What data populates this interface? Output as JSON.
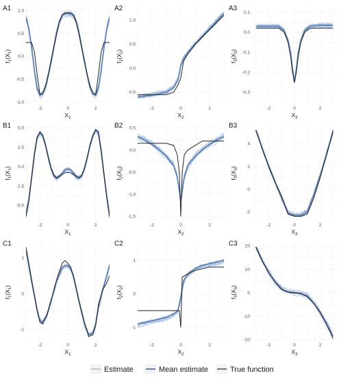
{
  "legend": {
    "items": [
      {
        "label": "Estimate",
        "color": "#a6bddb"
      },
      {
        "label": "Mean estimate",
        "color": "#5b84c4"
      },
      {
        "label": "True function",
        "color": "#222222"
      }
    ]
  },
  "chart_data": [
    {
      "id": "A1",
      "type": "line",
      "panel_label": "A1",
      "xlabel": "X1",
      "ylabel": "f1(X1)",
      "xlim": [
        -3,
        3
      ],
      "ylim": [
        -1.05,
        1.05
      ],
      "xticks": [
        -2,
        0,
        2
      ],
      "yticks": [
        -1.0,
        -0.5,
        0.0,
        0.5,
        1.0
      ],
      "ytick_labels": [
        "-1.0",
        "-0.5",
        "0.0",
        "0.5",
        "1.0"
      ],
      "series": [
        {
          "name": "True function",
          "x": [
            -3,
            -2.8,
            -2.6,
            -2.4,
            -2.2,
            -2.0,
            -1.8,
            -1.6,
            -1.4,
            -1.2,
            -1.0,
            -0.8,
            -0.6,
            -0.4,
            -0.2,
            0,
            0.2,
            0.4,
            0.6,
            0.8,
            1.0,
            1.2,
            1.4,
            1.6,
            1.8,
            2.0,
            2.2,
            2.4,
            2.6,
            2.8,
            3
          ],
          "y": [
            0.3,
            0.3,
            0.3,
            0.1,
            -0.4,
            -0.84,
            -0.8,
            -0.65,
            -0.4,
            -0.1,
            0.2,
            0.5,
            0.75,
            0.9,
            0.95,
            0.95,
            0.95,
            0.9,
            0.75,
            0.5,
            0.2,
            -0.1,
            -0.4,
            -0.65,
            -0.8,
            -0.84,
            -0.4,
            0.1,
            0.3,
            0.3,
            0.3
          ]
        },
        {
          "name": "Mean estimate",
          "x": [
            -3,
            -2.8,
            -2.6,
            -2.4,
            -2.2,
            -2.0,
            -1.8,
            -1.6,
            -1.4,
            -1.2,
            -1.0,
            -0.8,
            -0.6,
            -0.4,
            -0.2,
            0,
            0.2,
            0.4,
            0.6,
            0.8,
            1.0,
            1.2,
            1.4,
            1.6,
            1.8,
            2.0,
            2.2,
            2.4,
            2.6,
            2.8,
            3
          ],
          "y": [
            0.85,
            0.6,
            0.2,
            -0.3,
            -0.7,
            -0.85,
            -0.82,
            -0.68,
            -0.42,
            -0.12,
            0.2,
            0.52,
            0.76,
            0.9,
            0.93,
            0.93,
            0.93,
            0.9,
            0.76,
            0.52,
            0.2,
            -0.12,
            -0.42,
            -0.68,
            -0.82,
            -0.85,
            -0.7,
            -0.3,
            0.2,
            0.6,
            0.85
          ]
        }
      ]
    },
    {
      "id": "A2",
      "type": "line",
      "panel_label": "A2",
      "xlabel": "X2",
      "ylabel": "f2(X2)",
      "xlim": [
        -3,
        3
      ],
      "ylim": [
        -0.75,
        1.25
      ],
      "xticks": [
        -2,
        0,
        2
      ],
      "yticks": [
        -0.5,
        0.0,
        0.5,
        1.0
      ],
      "ytick_labels": [
        "-0.5",
        "0.0",
        "0.5",
        "1.0"
      ],
      "series": [
        {
          "name": "True function",
          "x": [
            -3,
            -2,
            -1,
            -0.5,
            -0.2,
            0,
            0.2,
            0.5,
            1,
            1.5,
            2,
            2.5,
            3
          ],
          "y": [
            -0.55,
            -0.55,
            -0.55,
            -0.5,
            -0.35,
            -0.2,
            0.15,
            0.3,
            0.5,
            0.65,
            0.8,
            0.95,
            1.1
          ]
        },
        {
          "name": "Mean estimate",
          "x": [
            -3,
            -2,
            -1,
            -0.5,
            -0.2,
            0,
            0.2,
            0.5,
            1,
            1.5,
            2,
            2.5,
            3
          ],
          "y": [
            -0.6,
            -0.56,
            -0.5,
            -0.4,
            -0.25,
            0.05,
            0.2,
            0.32,
            0.5,
            0.66,
            0.82,
            0.98,
            1.14
          ]
        }
      ]
    },
    {
      "id": "A3",
      "type": "line",
      "panel_label": "A3",
      "xlabel": "X3",
      "ylabel": "f3(X3)",
      "xlim": [
        -3.3,
        3.3
      ],
      "ylim": [
        -0.36,
        0.12
      ],
      "xticks": [
        -2,
        0,
        2
      ],
      "yticks": [
        -0.3,
        -0.2,
        -0.1,
        0.0,
        0.1
      ],
      "ytick_labels": [
        "-0.3",
        "-0.2",
        "-0.1",
        "0.0",
        "0.1"
      ],
      "series": [
        {
          "name": "True function",
          "x": [
            -3,
            -2,
            -1.2,
            -0.8,
            -0.5,
            -0.3,
            -0.15,
            0,
            0.15,
            0.3,
            0.5,
            0.8,
            1.2,
            2,
            3
          ],
          "y": [
            0.02,
            0.02,
            0.02,
            0.0,
            -0.05,
            -0.12,
            -0.2,
            -0.25,
            -0.2,
            -0.12,
            -0.05,
            0.0,
            0.02,
            0.02,
            0.02
          ]
        },
        {
          "name": "Mean estimate",
          "x": [
            -3,
            -2,
            -1.2,
            -0.8,
            -0.5,
            -0.3,
            -0.15,
            0,
            0.15,
            0.3,
            0.5,
            0.8,
            1.2,
            2,
            3
          ],
          "y": [
            0.03,
            0.03,
            0.03,
            0.01,
            -0.04,
            -0.1,
            -0.18,
            -0.25,
            -0.18,
            -0.1,
            -0.04,
            0.01,
            0.03,
            0.035,
            0.035
          ]
        }
      ]
    },
    {
      "id": "B1",
      "type": "line",
      "panel_label": "B1",
      "xlabel": "X1",
      "ylabel": "f1(X1)",
      "xlim": [
        -3,
        3
      ],
      "ylim": [
        -7,
        5.3
      ],
      "xticks": [
        -2,
        0,
        2
      ],
      "yticks": [
        -5.0,
        -2.5,
        0.0,
        2.5,
        5.0
      ],
      "ytick_labels": [
        "-5.0",
        "-2.5",
        "0.0",
        "2.5",
        "5.0"
      ],
      "series": [
        {
          "name": "True function",
          "x": [
            -3,
            -2.8,
            -2.6,
            -2.4,
            -2.2,
            -2.0,
            -1.8,
            -1.6,
            -1.4,
            -1.2,
            -1.0,
            -0.8,
            -0.6,
            -0.4,
            -0.2,
            0,
            0.2,
            0.4,
            0.6,
            0.8,
            1.0,
            1.2,
            1.4,
            1.6,
            1.8,
            2.0,
            2.2,
            2.4,
            2.6,
            2.8,
            3
          ],
          "y": [
            -6.5,
            -4.5,
            -1.5,
            1.5,
            3.8,
            4.5,
            4.0,
            2.8,
            1.2,
            -0.2,
            -1.2,
            -1.5,
            -1.3,
            -1.0,
            -0.8,
            -0.75,
            -0.8,
            -1.0,
            -1.3,
            -1.5,
            -1.2,
            -0.2,
            1.2,
            2.8,
            4.0,
            4.8,
            4.5,
            2.0,
            -1.0,
            -4.0,
            -6.5
          ]
        },
        {
          "name": "Mean estimate",
          "x": [
            -3,
            -2.8,
            -2.6,
            -2.4,
            -2.2,
            -2.0,
            -1.8,
            -1.6,
            -1.4,
            -1.2,
            -1.0,
            -0.8,
            -0.6,
            -0.4,
            -0.2,
            0,
            0.2,
            0.4,
            0.6,
            0.8,
            1.0,
            1.2,
            1.4,
            1.6,
            1.8,
            2.0,
            2.2,
            2.4,
            2.6,
            2.8,
            3
          ],
          "y": [
            -6.0,
            -4.2,
            -1.4,
            1.6,
            3.8,
            4.4,
            4.0,
            2.8,
            1.2,
            -0.2,
            -1.1,
            -1.4,
            -1.2,
            -0.8,
            -0.4,
            -0.3,
            -0.4,
            -0.8,
            -1.2,
            -1.4,
            -1.1,
            -0.2,
            1.2,
            2.8,
            4.0,
            4.7,
            4.4,
            2.0,
            -1.0,
            -3.8,
            -6.3
          ]
        }
      ]
    },
    {
      "id": "B2",
      "type": "line",
      "panel_label": "B2",
      "xlabel": "X2",
      "ylabel": "f2(X2)",
      "xlim": [
        -3,
        3
      ],
      "ylim": [
        -1.6,
        0.55
      ],
      "xticks": [
        -2,
        0,
        2
      ],
      "yticks": [
        -1.5,
        -1.0,
        -0.5,
        0.0,
        0.5
      ],
      "ytick_labels": [
        "-1.5",
        "-1.0",
        "-0.5",
        "0.0",
        "0.5"
      ],
      "series": [
        {
          "name": "True function",
          "x": [
            -3,
            -2,
            -1,
            -0.5,
            -0.25,
            -0.1,
            0,
            0.1,
            0.25,
            0.5,
            1,
            1.5,
            2,
            3
          ],
          "y": [
            0.15,
            0.15,
            0.15,
            0.1,
            -0.1,
            -0.5,
            -1.5,
            -0.5,
            -0.1,
            0.0,
            0.1,
            0.2,
            0.2,
            0.2
          ]
        },
        {
          "name": "Mean estimate",
          "x": [
            -3,
            -2.5,
            -2,
            -1.5,
            -1,
            -0.5,
            -0.25,
            0,
            0.25,
            0.5,
            1,
            1.5,
            2,
            2.5,
            3
          ],
          "y": [
            0.3,
            0.22,
            0.12,
            0.0,
            -0.15,
            -0.35,
            -0.6,
            -1.15,
            -0.6,
            -0.35,
            -0.15,
            0.0,
            0.12,
            0.22,
            0.3
          ]
        }
      ]
    },
    {
      "id": "B3",
      "type": "line",
      "panel_label": "B3",
      "xlabel": "X3",
      "ylabel": "f3(X3)",
      "xlim": [
        -3.3,
        3.3
      ],
      "ylim": [
        -2.8,
        5.6
      ],
      "xticks": [
        -2,
        0,
        2
      ],
      "yticks": [
        -2,
        0,
        2,
        4
      ],
      "ytick_labels": [
        "-2",
        "0",
        "2",
        "4"
      ],
      "series": [
        {
          "name": "True function",
          "x": [
            -3,
            -2.5,
            -2,
            -1.5,
            -1,
            -0.5,
            0,
            0.5,
            1,
            1.5,
            2,
            2.5,
            3
          ],
          "y": [
            5.2,
            3.5,
            2.0,
            0.6,
            -0.6,
            -2.2,
            -2.4,
            -2.4,
            -2.2,
            -0.8,
            1.0,
            3.0,
            5.2
          ]
        },
        {
          "name": "Mean estimate",
          "x": [
            -3,
            -2.5,
            -2,
            -1.5,
            -1,
            -0.5,
            0,
            0.5,
            1,
            1.5,
            2,
            2.5,
            3
          ],
          "y": [
            5.2,
            3.6,
            2.0,
            0.6,
            -0.8,
            -2.1,
            -2.3,
            -2.3,
            -2.0,
            -0.5,
            1.2,
            3.1,
            5.0
          ]
        }
      ]
    },
    {
      "id": "C1",
      "type": "line",
      "panel_label": "C1",
      "xlabel": "X1",
      "ylabel": "f1(X1)",
      "xlim": [
        -3,
        3
      ],
      "ylim": [
        -1.32,
        1.4
      ],
      "xticks": [
        -2,
        0,
        2
      ],
      "yticks": [
        -1,
        0,
        1
      ],
      "ytick_labels": [
        "-1",
        "0",
        "1"
      ],
      "series": [
        {
          "name": "True function",
          "x": [
            -3,
            -2.6,
            -2.2,
            -2.0,
            -1.8,
            -1.5,
            -1.2,
            -0.8,
            -0.4,
            -0.2,
            0,
            0.2,
            0.4,
            0.8,
            1.2,
            1.5,
            1.8,
            2.0,
            2.2,
            2.5,
            2.8,
            3
          ],
          "y": [
            1.3,
            0.4,
            -0.5,
            -0.8,
            -0.85,
            -0.6,
            -0.2,
            0.4,
            0.85,
            0.92,
            0.85,
            0.75,
            0.5,
            -0.2,
            -0.8,
            -1.2,
            -1.15,
            -0.9,
            -0.3,
            0.1,
            0.3,
            0.5
          ]
        },
        {
          "name": "Mean estimate",
          "x": [
            -3,
            -2.6,
            -2.2,
            -2.0,
            -1.8,
            -1.5,
            -1.2,
            -0.8,
            -0.4,
            -0.2,
            0,
            0.2,
            0.4,
            0.8,
            1.2,
            1.5,
            1.8,
            2.0,
            2.2,
            2.5,
            2.8,
            3
          ],
          "y": [
            1.2,
            0.35,
            -0.45,
            -0.75,
            -0.8,
            -0.6,
            -0.2,
            0.35,
            0.72,
            0.78,
            0.78,
            0.7,
            0.5,
            -0.2,
            -0.85,
            -1.15,
            -1.1,
            -0.85,
            -0.4,
            0.1,
            0.5,
            0.8
          ]
        }
      ]
    },
    {
      "id": "C2",
      "type": "line",
      "panel_label": "C2",
      "xlabel": "X2",
      "ylabel": "f2(X2)",
      "xlim": [
        -3,
        3
      ],
      "ylim": [
        -1.4,
        1.5
      ],
      "xticks": [
        -2,
        0,
        2
      ],
      "yticks": [
        -1,
        0,
        1
      ],
      "ytick_labels": [
        "-1",
        "0",
        "1"
      ],
      "series": [
        {
          "name": "True function",
          "x": [
            -3,
            -2,
            -1,
            -0.5,
            -0.1,
            0,
            0.1,
            0.5,
            1,
            1.5,
            2,
            3
          ],
          "y": [
            -0.5,
            -0.5,
            -0.5,
            -0.5,
            -0.5,
            -1.0,
            0.5,
            0.6,
            0.7,
            0.75,
            0.8,
            0.8
          ]
        },
        {
          "name": "Mean estimate",
          "x": [
            -3,
            -2,
            -1,
            -0.5,
            -0.2,
            0,
            0.2,
            0.5,
            1,
            1.5,
            2,
            2.5,
            3
          ],
          "y": [
            -0.9,
            -0.8,
            -0.7,
            -0.6,
            -0.5,
            -0.1,
            0.4,
            0.6,
            0.75,
            0.85,
            0.9,
            0.95,
            1.0
          ]
        }
      ]
    },
    {
      "id": "C3",
      "type": "line",
      "panel_label": "C3",
      "xlabel": "X3",
      "ylabel": "f3(X3)",
      "xlim": [
        -3.3,
        3.3
      ],
      "ylim": [
        -20.5,
        21
      ],
      "xticks": [
        -2,
        0,
        2
      ],
      "yticks": [
        -20,
        -10,
        0,
        10,
        20
      ],
      "ytick_labels": [
        "-20",
        "-10",
        "0",
        "10",
        "20"
      ],
      "series": [
        {
          "name": "True function",
          "x": [
            -3,
            -2.5,
            -2,
            -1.5,
            -1,
            -0.5,
            0,
            0.5,
            1,
            1.5,
            2,
            2.5,
            3
          ],
          "y": [
            19.5,
            13.5,
            8.5,
            4.5,
            1.5,
            0.3,
            0.0,
            -0.3,
            -1.5,
            -4.5,
            -8.5,
            -13.5,
            -19.5
          ]
        },
        {
          "name": "Mean estimate",
          "x": [
            -3,
            -2.5,
            -2,
            -1.5,
            -1,
            -0.5,
            0,
            0.5,
            1,
            1.5,
            2,
            2.5,
            3
          ],
          "y": [
            19.5,
            13.6,
            8.6,
            4.6,
            1.6,
            0.3,
            0.0,
            -0.3,
            -1.5,
            -4.4,
            -8.3,
            -13.2,
            -18.5
          ]
        }
      ]
    }
  ]
}
